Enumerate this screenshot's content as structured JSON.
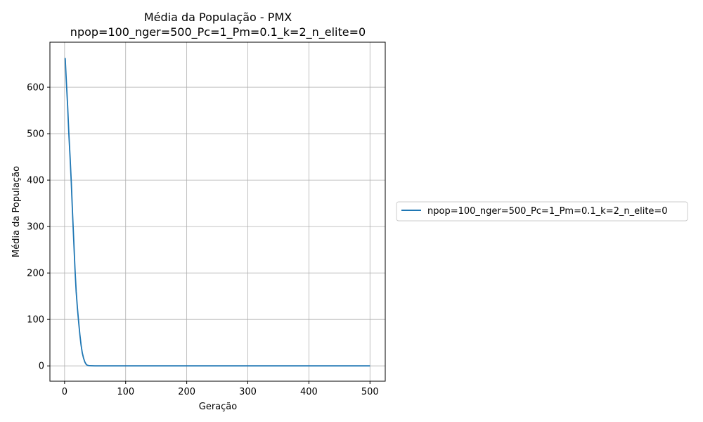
{
  "chart_data": {
    "type": "line",
    "title": "Média da População - PMX",
    "subtitle": "npop=100_nger=500_Pc=1_Pm=0.1_k=2_n_elite=0",
    "xlabel": "Geração",
    "ylabel": "Média da População",
    "xlim": [
      -24,
      525
    ],
    "ylim": [
      -33,
      697
    ],
    "x_ticks": [
      0,
      100,
      200,
      300,
      400,
      500
    ],
    "y_ticks": [
      0,
      100,
      200,
      300,
      400,
      500,
      600
    ],
    "grid": true,
    "legend_position": "right",
    "series": [
      {
        "name": "npop=100_nger=500_Pc=1_Pm=0.1_k=2_n_elite=0",
        "color": "#1f77b4",
        "x": [
          1,
          3,
          5,
          7,
          9,
          11,
          13,
          15,
          17,
          19,
          21,
          23,
          25,
          27,
          29,
          31,
          33,
          35,
          37,
          40,
          45,
          50,
          60,
          80,
          100,
          150,
          200,
          250,
          300,
          350,
          400,
          450,
          500
        ],
        "y": [
          663,
          610,
          560,
          500,
          450,
          395,
          330,
          270,
          210,
          160,
          125,
          95,
          68,
          45,
          28,
          17,
          9,
          4,
          1.5,
          0.5,
          0.2,
          0,
          0,
          0,
          0,
          0,
          0,
          0,
          0,
          0,
          0,
          0,
          0
        ]
      }
    ]
  }
}
